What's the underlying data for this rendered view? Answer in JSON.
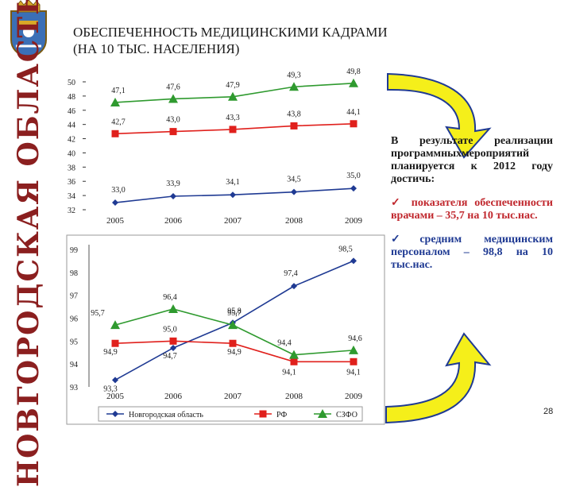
{
  "sidebar": {
    "region_name": "НОВГОРОДСКАЯ ОБЛАСТЬ"
  },
  "title": {
    "line1": "ОБЕСПЕЧЕННОСТЬ МЕДИЦИНСКИМИ КАДРАМИ",
    "line2": "(НА 10 ТЫС. НАСЕЛЕНИЯ)"
  },
  "callout": {
    "intro": "В результате реализации программныхмероприятий планируется к 2012 году достичь:",
    "item1": "✓ показателя обеспеченности врачами – 35,7 на 10 тыс.нас.",
    "item2": "✓средним медицинским персоналом – 98,8 на 10 тыс.нас."
  },
  "page_number": "28",
  "colors": {
    "blue": "#1f3a93",
    "red": "#e0201c",
    "green": "#2f9a2f",
    "arrow_fill": "#f5ef1a",
    "arrow_stroke": "#1f3a93",
    "accent": "#8b1f1f"
  },
  "chart_data": [
    {
      "type": "line",
      "categories": [
        "2005",
        "2006",
        "2007",
        "2008",
        "2009"
      ],
      "y_ticks": [
        "50",
        "48",
        "46",
        "44",
        "42",
        "40",
        "38",
        "36",
        "34",
        "32"
      ],
      "ylim": [
        32,
        50
      ],
      "grid": false,
      "series": [
        {
          "key": "green",
          "values": [
            47.1,
            47.6,
            47.9,
            49.3,
            49.8
          ],
          "labels": [
            "47,1",
            "47,6",
            "47,9",
            "49,3",
            "49,8"
          ],
          "color": "#2f9a2f",
          "marker": "triangle"
        },
        {
          "key": "red",
          "values": [
            42.7,
            43.0,
            43.3,
            43.8,
            44.1
          ],
          "labels": [
            "42,7",
            "43,0",
            "43,3",
            "43,8",
            "44,1"
          ],
          "color": "#e0201c",
          "marker": "square"
        },
        {
          "key": "blue",
          "values": [
            33.0,
            33.9,
            34.1,
            34.5,
            35.0
          ],
          "labels": [
            "33,0",
            "33,9",
            "34,1",
            "34,5",
            "35,0"
          ],
          "color": "#1f3a93",
          "marker": "diamond"
        }
      ]
    },
    {
      "type": "line",
      "categories": [
        "2005",
        "2006",
        "2007",
        "2008",
        "2009"
      ],
      "y_ticks": [
        "99",
        "98",
        "97",
        "96",
        "95",
        "94",
        "93"
      ],
      "ylim": [
        93,
        99
      ],
      "grid": false,
      "legend": "bottom",
      "series": [
        {
          "name": "Новгородская область",
          "values": [
            93.3,
            94.7,
            95.8,
            97.4,
            98.5
          ],
          "labels": [
            "93,3",
            "94,7",
            "95,8",
            "97,4",
            "98,5"
          ],
          "color": "#1f3a93",
          "marker": "diamond"
        },
        {
          "name": "РФ",
          "values": [
            94.9,
            95.0,
            94.9,
            94.1,
            94.1
          ],
          "labels": [
            "94,9",
            "95,0",
            "94,9",
            "94,1",
            "94,1"
          ],
          "color": "#e0201c",
          "marker": "square"
        },
        {
          "name": "СЗФО",
          "values": [
            95.7,
            96.4,
            95.7,
            94.4,
            94.6
          ],
          "labels": [
            "95,7",
            "96,4",
            "95,7",
            "94,4",
            "94,6"
          ],
          "color": "#2f9a2f",
          "marker": "triangle"
        }
      ]
    }
  ]
}
